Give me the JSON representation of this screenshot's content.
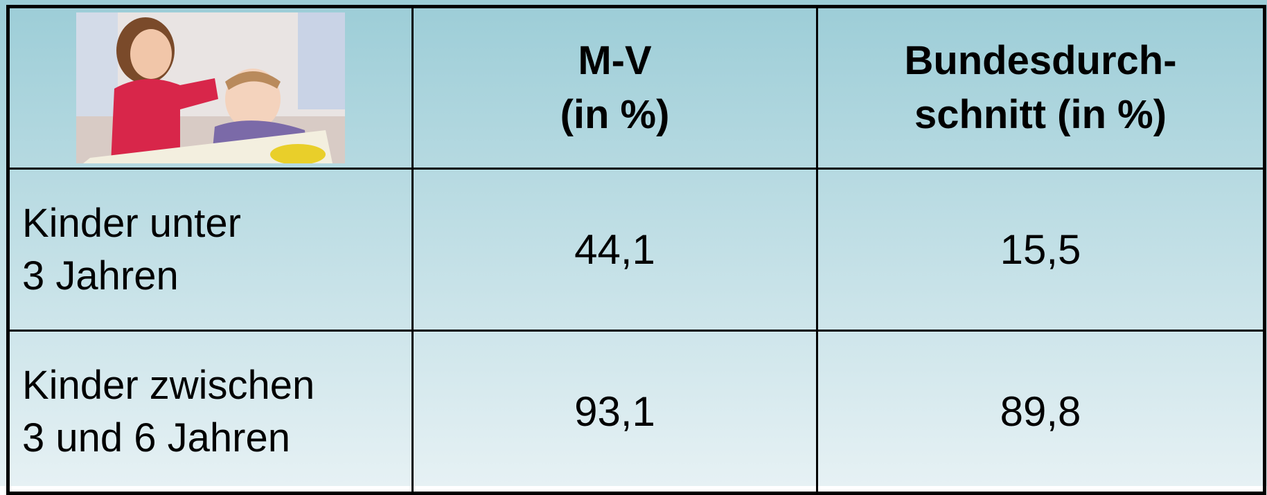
{
  "table": {
    "header": [
      "M-V\n(in %)",
      "Bundesdurch-\nschnitt (in %)"
    ],
    "rows": [
      [
        "Kinder unter\n3 Jahren",
        "44,1",
        "15,5"
      ],
      [
        "Kinder zwischen\n3 und 6 Jahren",
        "93,1",
        "89,8"
      ]
    ]
  }
}
